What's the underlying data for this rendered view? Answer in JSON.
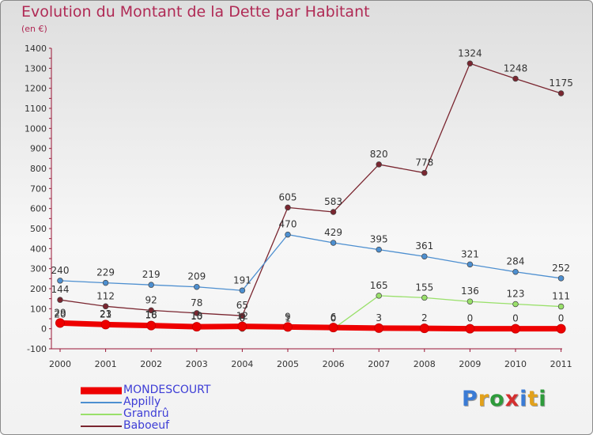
{
  "chart_data": {
    "type": "line",
    "title": "Evolution du Montant de la Dette par Habitant",
    "subtitle": "(en €)",
    "categories": [
      "2000",
      "2001",
      "2002",
      "2003",
      "2004",
      "2005",
      "2006",
      "2007",
      "2008",
      "2009",
      "2010",
      "2011"
    ],
    "ylim": [
      -100,
      1400
    ],
    "yticks": [
      -100,
      0,
      100,
      200,
      300,
      400,
      500,
      600,
      700,
      800,
      900,
      1000,
      1100,
      1200,
      1300,
      1400
    ],
    "grid": false,
    "legend_position": "bottom-left",
    "series": [
      {
        "name": "MONDESCOURT",
        "color": "#ee0000",
        "values": [
          29,
          21,
          16,
          10,
          12,
          9,
          6,
          3,
          2,
          0,
          0,
          0
        ],
        "labels": [
          "29",
          "21",
          "16",
          "10",
          "12",
          "9",
          "6",
          "3",
          "2",
          "0",
          "0",
          "0"
        ]
      },
      {
        "name": "Appilly",
        "color": "#4d8fd0",
        "values": [
          240,
          229,
          219,
          209,
          191,
          470,
          429,
          395,
          361,
          321,
          284,
          252
        ],
        "labels": [
          "240",
          "229",
          "219",
          "209",
          "191",
          "470",
          "429",
          "395",
          "361",
          "321",
          "284",
          "252"
        ]
      },
      {
        "name": "Grandrû",
        "color": "#99e06a",
        "values": [
          20,
          23,
          18,
          13,
          0,
          1,
          0,
          165,
          155,
          136,
          123,
          111
        ],
        "labels": [
          "20",
          "23",
          "18",
          "13",
          "0",
          "1",
          "0",
          "165",
          "155",
          "136",
          "123",
          "111"
        ]
      },
      {
        "name": "Baboeuf",
        "color": "#7a2630",
        "values": [
          144,
          112,
          92,
          78,
          65,
          605,
          583,
          820,
          778,
          1324,
          1248,
          1175
        ],
        "labels": [
          "144",
          "112",
          "92",
          "78",
          "65",
          "605",
          "583",
          "820",
          "778",
          "1324",
          "1248",
          "1175"
        ]
      }
    ]
  },
  "logo": {
    "text": "Proxiti",
    "letters": [
      "P",
      "r",
      "o",
      "x",
      "i",
      "t",
      "i"
    ],
    "colors": [
      "#3a7bd5",
      "#e2a11b",
      "#2e9b3b",
      "#d42f2f",
      "#3a7bd5",
      "#e2a11b",
      "#2e9b3b"
    ]
  }
}
